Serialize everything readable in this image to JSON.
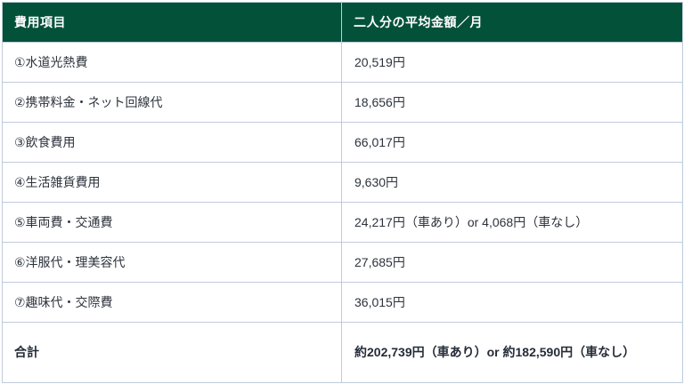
{
  "table": {
    "header": {
      "item_col": "費用項目",
      "amount_col": "二人分の平均金額／月"
    },
    "rows": [
      {
        "item": "①水道光熱費",
        "value": "20,519円"
      },
      {
        "item": "②携帯料金・ネット回線代",
        "value": "18,656円"
      },
      {
        "item": "③飲食費用",
        "value": "66,017円"
      },
      {
        "item": "④生活雑貨費用",
        "value": "9,630円"
      },
      {
        "item": "⑤車両費・交通費",
        "value": "24,217円（車あり）or 4,068円（車なし）"
      },
      {
        "item": "⑥洋服代・理美容代",
        "value": "27,685円"
      },
      {
        "item": "⑦趣味代・交際費",
        "value": "36,015円"
      }
    ],
    "total": {
      "item": "合計",
      "value": "約202,739円（車あり）or 約182,590円（車なし）"
    }
  },
  "colors": {
    "header_bg": "#04513a",
    "header_text": "#ffffff",
    "border": "#bfcbdb",
    "body_text": "#2d333c"
  }
}
